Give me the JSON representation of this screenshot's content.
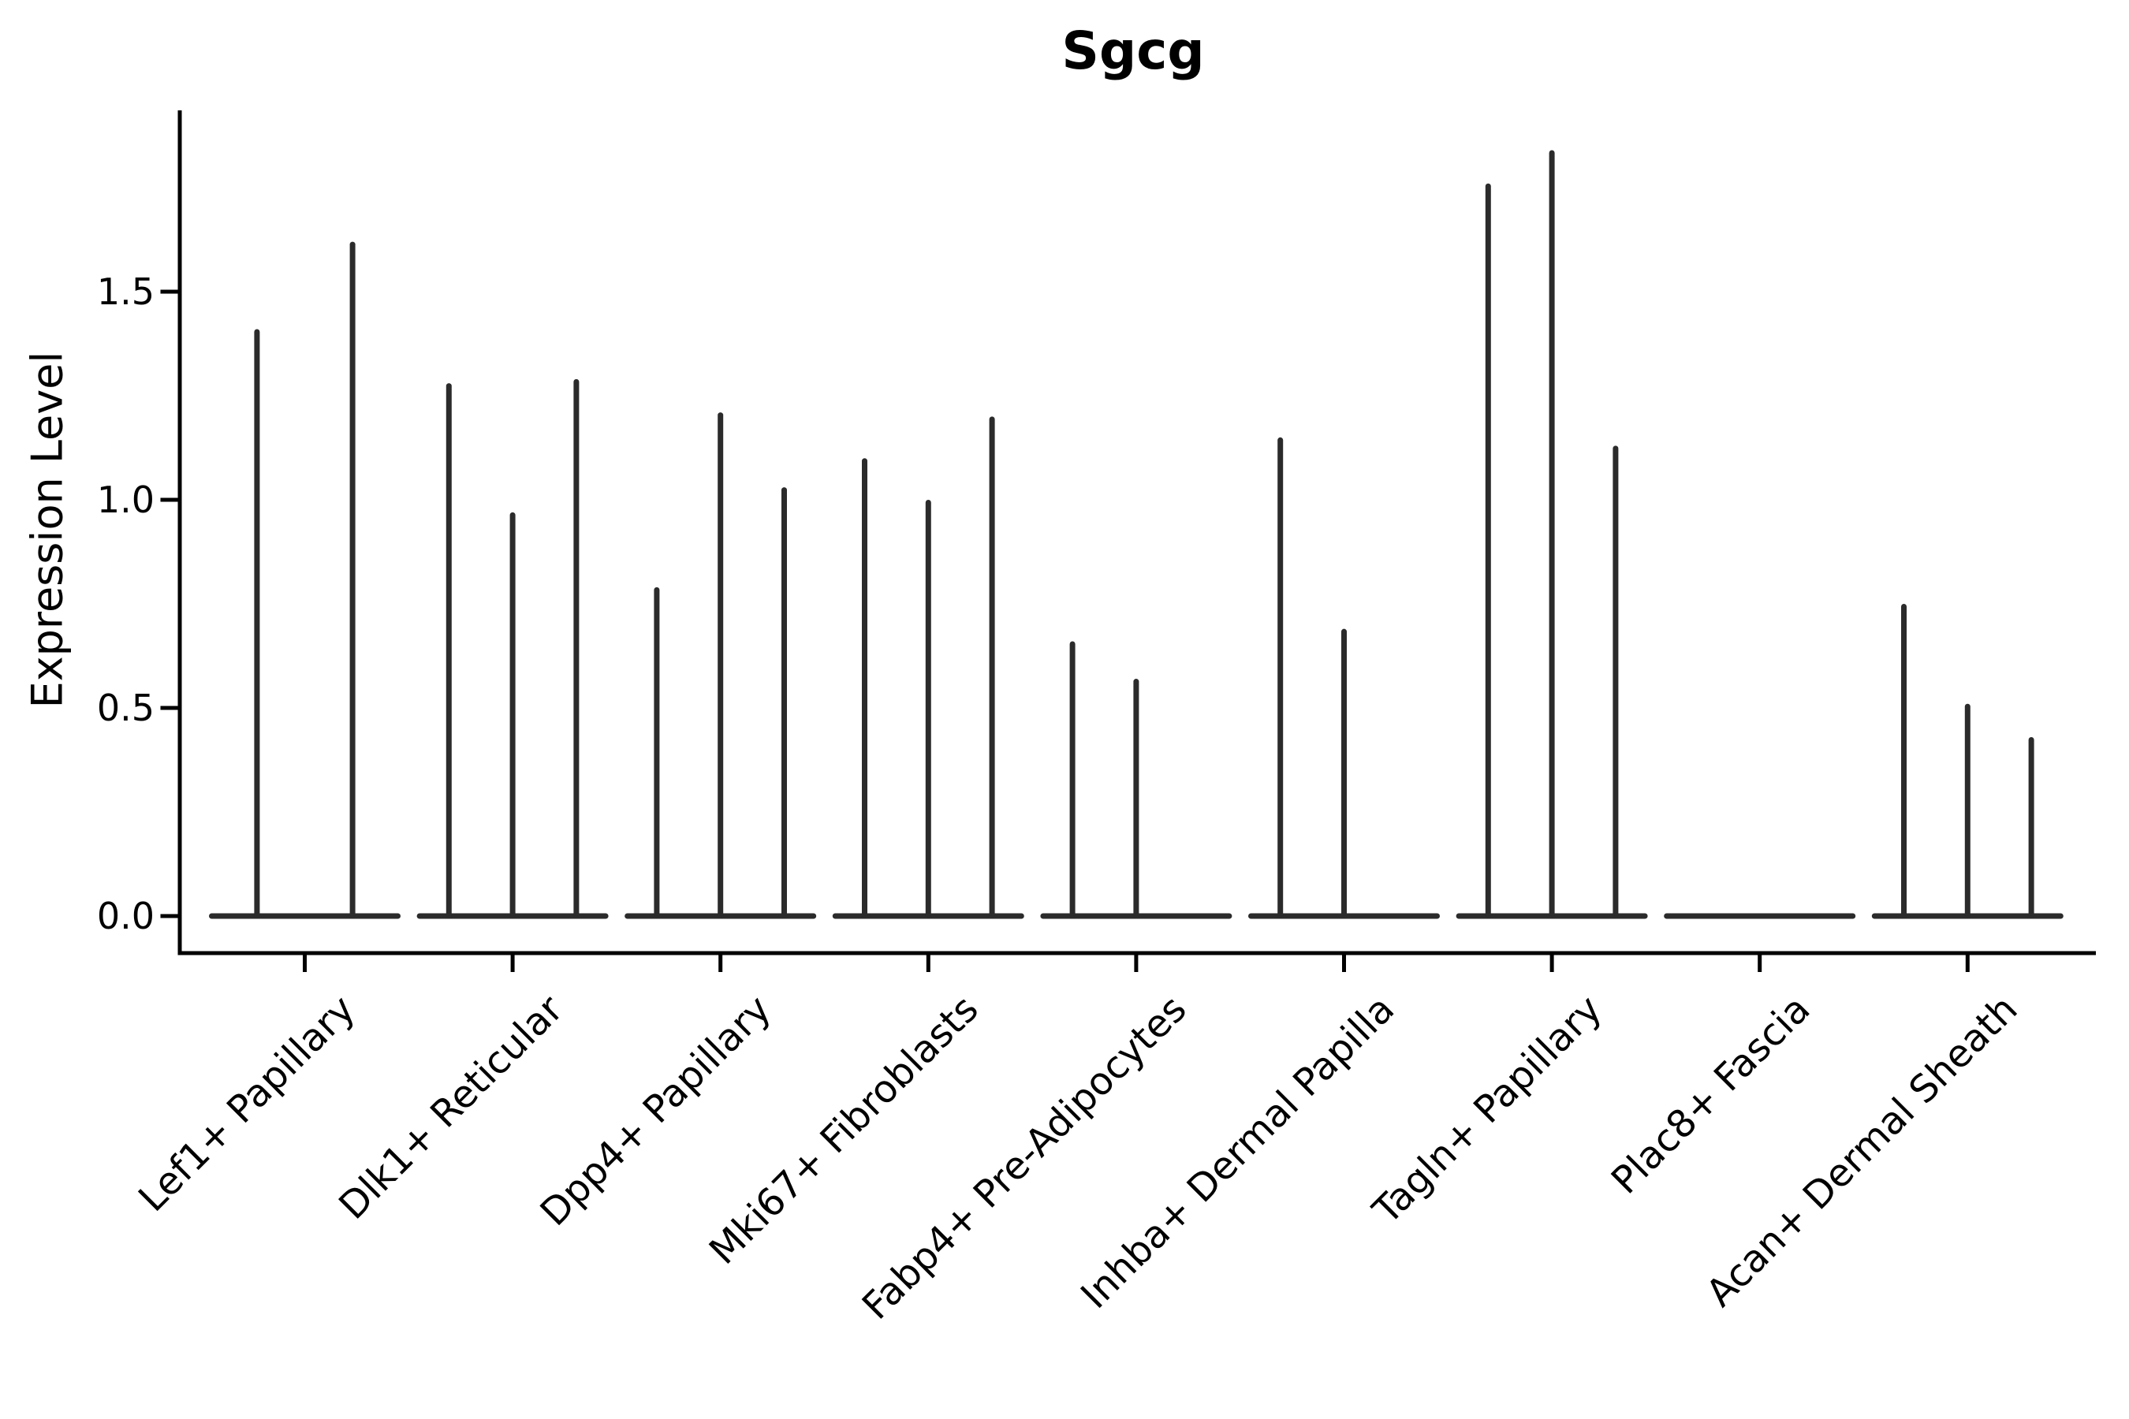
{
  "chart_data": {
    "type": "violin",
    "title": "Sgcg",
    "xlabel": "",
    "ylabel": "Expression Level",
    "ylim": [
      -0.09,
      1.94
    ],
    "yticks": [
      0.0,
      0.5,
      1.0,
      1.5
    ],
    "ytick_labels": [
      "0.0",
      "0.5",
      "1.0",
      "1.5"
    ],
    "grid": false,
    "legend_position": "none",
    "categories": [
      "Lef1+ Papillary",
      "Dlk1+ Reticular",
      "Dpp4+ Papillary",
      "Mki67+ Fibroblasts",
      "Fabp4+ Pre-Adipocytes",
      "Inhba+ Dermal Papilla",
      "Tagln+ Papillary",
      "Plac8+ Fascia",
      "Acan+ Dermal Sheath"
    ],
    "series": [
      {
        "category": "Lef1+ Papillary",
        "violin_maxima": [
          1.41,
          1.62
        ]
      },
      {
        "category": "Dlk1+ Reticular",
        "violin_maxima": [
          1.28,
          0.97,
          1.29
        ]
      },
      {
        "category": "Dpp4+ Papillary",
        "violin_maxima": [
          0.79,
          1.21,
          1.03
        ]
      },
      {
        "category": "Mki67+ Fibroblasts",
        "violin_maxima": [
          1.1,
          1.0,
          1.2
        ]
      },
      {
        "category": "Fabp4+ Pre-Adipocytes",
        "violin_maxima": [
          0.66,
          0.57,
          0.0
        ]
      },
      {
        "category": "Inhba+ Dermal Papilla",
        "violin_maxima": [
          1.15,
          0.69,
          0.0
        ]
      },
      {
        "category": "Tagln+ Papillary",
        "violin_maxima": [
          1.76,
          1.84,
          1.13
        ]
      },
      {
        "category": "Plac8+ Fascia",
        "violin_maxima": [
          0.0,
          0.0,
          0.0
        ]
      },
      {
        "category": "Acan+ Dermal Sheath",
        "violin_maxima": [
          0.75,
          0.51,
          0.43
        ]
      }
    ],
    "description": "Violin plot of Sgcg expression per fibroblast subpopulation; violins are extremely narrow vertical spikes rising from a flat base at expression 0. A value of 0 means the violin is a flat line at the baseline."
  },
  "colors": {
    "violin_ink": "#2b2b2b",
    "axis": "#000000",
    "text": "#000000",
    "background": "#ffffff"
  }
}
